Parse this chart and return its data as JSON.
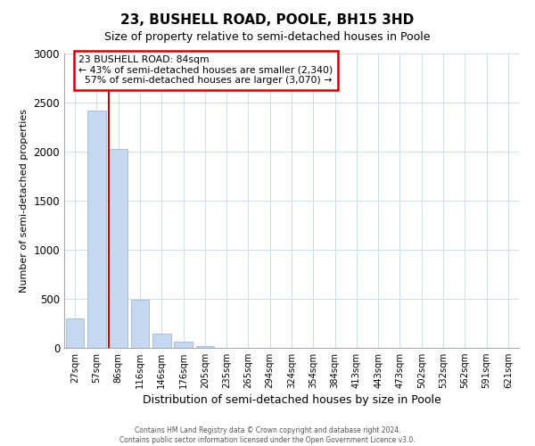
{
  "title": "23, BUSHELL ROAD, POOLE, BH15 3HD",
  "subtitle": "Size of property relative to semi-detached houses in Poole",
  "xlabel": "Distribution of semi-detached houses by size in Poole",
  "ylabel": "Number of semi-detached properties",
  "footnote1": "Contains HM Land Registry data © Crown copyright and database right 2024.",
  "footnote2": "Contains public sector information licensed under the Open Government Licence v3.0.",
  "bar_labels": [
    "27sqm",
    "57sqm",
    "86sqm",
    "116sqm",
    "146sqm",
    "176sqm",
    "205sqm",
    "235sqm",
    "265sqm",
    "294sqm",
    "324sqm",
    "354sqm",
    "384sqm",
    "413sqm",
    "443sqm",
    "473sqm",
    "502sqm",
    "532sqm",
    "562sqm",
    "591sqm",
    "621sqm"
  ],
  "bar_values": [
    300,
    2420,
    2030,
    490,
    150,
    60,
    20,
    0,
    0,
    0,
    0,
    0,
    0,
    0,
    0,
    0,
    0,
    0,
    0,
    0,
    0
  ],
  "bar_color": "#c5d8f0",
  "bar_edge_color": "#a0b8d8",
  "ylim": [
    0,
    3000
  ],
  "yticks": [
    0,
    500,
    1000,
    1500,
    2000,
    2500,
    3000
  ],
  "property_label": "23 BUSHELL ROAD: 84sqm",
  "pct_smaller": 43,
  "count_smaller": 2340,
  "pct_larger": 57,
  "count_larger": 3070,
  "vline_color": "#cc0000",
  "annotation_box_edge_color": "#cc0000",
  "background_color": "#ffffff",
  "grid_color": "#ccddee"
}
